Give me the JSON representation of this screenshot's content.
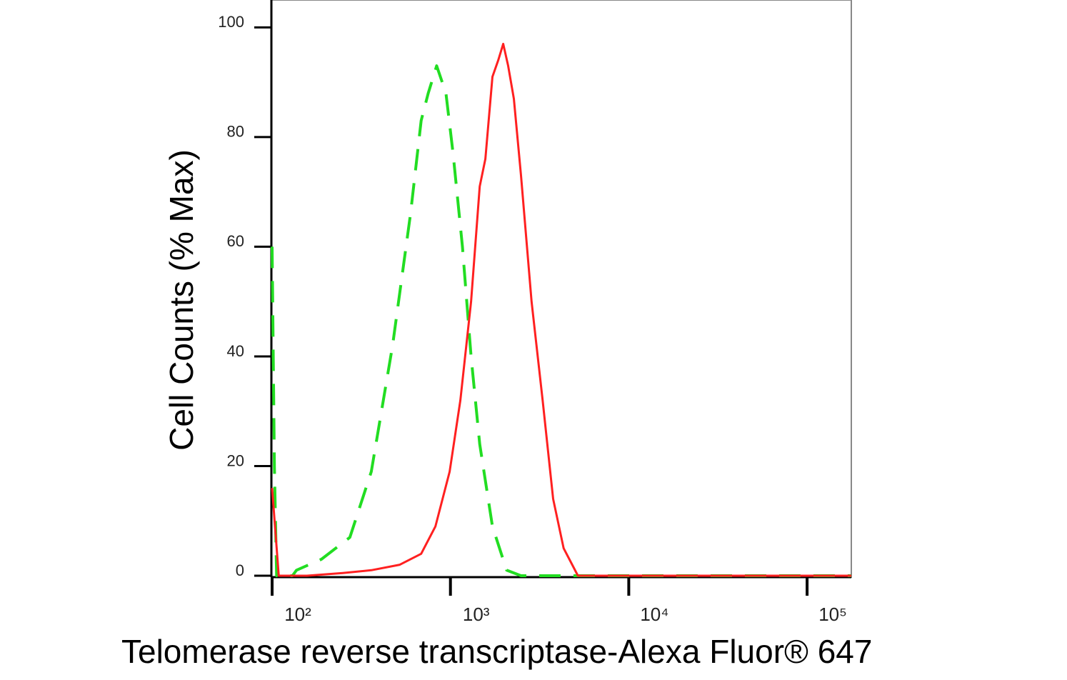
{
  "chart_data": {
    "type": "line",
    "xlog": true,
    "xlabel": "Telomerase reverse transcriptase-Alexa Fluor® 647",
    "ylabel": "Cell Counts (% Max)",
    "xlim": [
      100,
      177000
    ],
    "ylim": [
      0,
      105
    ],
    "xticks": [
      {
        "value": 100,
        "label": "10²"
      },
      {
        "value": 1000,
        "label": "10³"
      },
      {
        "value": 10000,
        "label": "10⁴"
      },
      {
        "value": 100000,
        "label": "10⁵"
      }
    ],
    "yticks": [
      0,
      20,
      40,
      60,
      80,
      100
    ],
    "series": [
      {
        "color": "#22dd22",
        "dashed": true,
        "x": [
          100,
          103,
          106,
          130,
          137,
          189,
          273,
          360,
          474,
          597,
          685,
          751,
          837,
          944,
          1035,
          1168,
          1306,
          1459,
          1720,
          2067,
          2487,
          177000
        ],
        "values": [
          60,
          20,
          0,
          0,
          1,
          3,
          7,
          19,
          42,
          66,
          83,
          88,
          93,
          88,
          77,
          60,
          40,
          24,
          9,
          1,
          0,
          0
        ]
      },
      {
        "color": "#ff2020",
        "dashed": false,
        "x": [
          100,
          109,
          157,
          249,
          360,
          520,
          685,
          824,
          990,
          1137,
          1306,
          1459,
          1570,
          1720,
          1854,
          1977,
          2107,
          2268,
          2487,
          2852,
          3289,
          3767,
          4315,
          5188,
          177000
        ],
        "values": [
          16,
          0,
          0,
          0.5,
          1,
          2,
          4,
          9,
          19,
          32,
          50,
          71,
          76,
          91,
          94,
          97,
          93,
          87,
          73,
          50,
          32,
          14,
          5,
          0,
          0
        ]
      }
    ]
  }
}
